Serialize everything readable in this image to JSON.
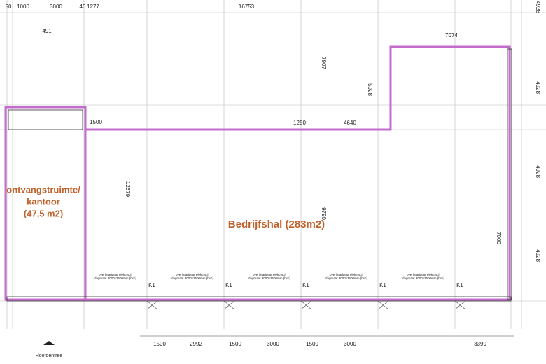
{
  "dimensions": {
    "top": [
      50,
      1000,
      3000,
      40,
      1277,
      16753,
      7074,
      491
    ],
    "inner": [
      1500,
      1250,
      4640,
      7907,
      5028,
      12679,
      9790,
      7000
    ],
    "right": [
      4928,
      4928,
      4928,
      4928
    ],
    "bottom": [
      1500,
      2992,
      1500,
      3000,
      1500,
      3000,
      3390
    ]
  },
  "rooms": [
    {
      "lines": [
        "ontvangstruimte/",
        "kantoor",
        "(47,5 m2)"
      ]
    },
    {
      "lines": [
        "Bedrijfshal (283m2)"
      ]
    }
  ],
  "doors": [
    {
      "label": "overheaddeur elektrisch",
      "size": "dagmaat 3000x3500mm (bxh)",
      "tag": "K1"
    },
    {
      "label": "overheaddeur elektrisch",
      "size": "dagmaat 3000x3500mm (bxh)",
      "tag": "K1"
    },
    {
      "label": "overheaddeur elektrisch",
      "size": "dagmaat 3000x3500mm (bxh)",
      "tag": "K1"
    },
    {
      "label": "overheaddeur elektrisch",
      "size": "dagmaat 3000x3500mm (bxh)",
      "tag": "K1"
    },
    {
      "label": "overheaddeur elektrisch",
      "size": "dagmaat 3000x3500mm (bxh)",
      "tag": "K1"
    }
  ],
  "entrance": "Hoofdentree"
}
